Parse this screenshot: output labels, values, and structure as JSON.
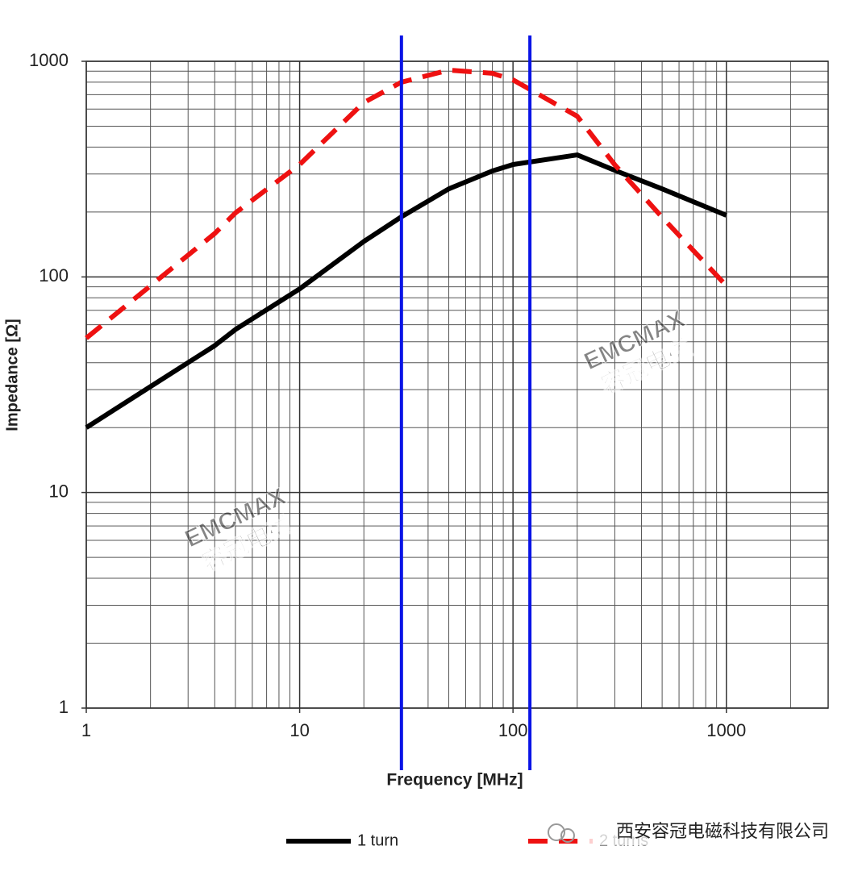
{
  "chart_data": {
    "type": "line",
    "x_label": "Frequency [MHz]",
    "y_label": "Impedance [Ω]",
    "log_x": true,
    "log_y": true,
    "grid": true,
    "minor_grid": true,
    "xlim": [
      1,
      3000
    ],
    "ylim": [
      1,
      1000
    ],
    "xticks": [
      1,
      10,
      100,
      1000
    ],
    "yticks": [
      1,
      10,
      100,
      1000
    ],
    "x": [
      1,
      2,
      4,
      5,
      10,
      20,
      30,
      50,
      80,
      100,
      200,
      300,
      500,
      1000
    ],
    "series": [
      {
        "name": "1 turn",
        "color": "#000000",
        "dash": false,
        "values": [
          20,
          31,
          48,
          57,
          88,
          146,
          190,
          256,
          310,
          332,
          368,
          312,
          256,
          193
        ]
      },
      {
        "name": "2 turns",
        "color": "#ee1111",
        "dash": true,
        "values": [
          52,
          91,
          159,
          198,
          332,
          644,
          800,
          910,
          880,
          820,
          556,
          331,
          189,
          91
        ]
      }
    ],
    "reference_lines": [
      {
        "x": 30,
        "color": "#0a14e6"
      },
      {
        "x": 120,
        "color": "#0a14e6"
      }
    ],
    "watermarks": [
      [
        "EMCMAX",
        "容冠电磁"
      ],
      [
        "EMCMAX",
        "容冠电磁"
      ]
    ],
    "source": "西安容冠电磁科技有限公司"
  }
}
